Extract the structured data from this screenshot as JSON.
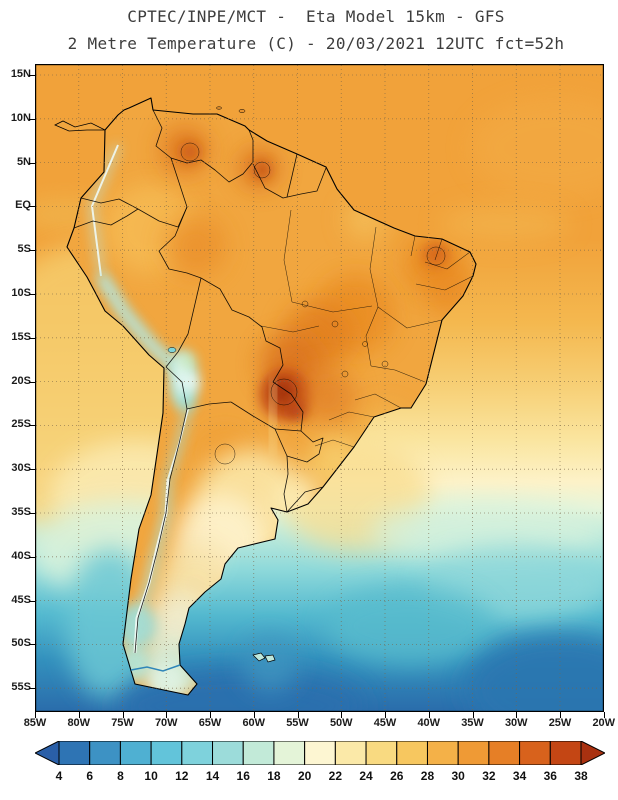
{
  "title": {
    "line1": "CPTEC/INPE/MCT -  Eta Model 15km - GFS",
    "line2": "2 Metre Temperature (C) - 20/03/2021 12UTC fct=52h"
  },
  "axes": {
    "lat_labels": [
      "15N",
      "10N",
      "5N",
      "EQ",
      "5S",
      "10S",
      "15S",
      "20S",
      "25S",
      "30S",
      "35S",
      "40S",
      "45S",
      "50S",
      "55S"
    ],
    "lon_labels": [
      "85W",
      "80W",
      "75W",
      "70W",
      "65W",
      "60W",
      "55W",
      "50W",
      "45W",
      "40W",
      "35W",
      "30W",
      "25W",
      "20W"
    ]
  },
  "colorbar": {
    "labels": [
      "4",
      "6",
      "8",
      "10",
      "12",
      "14",
      "16",
      "18",
      "20",
      "22",
      "24",
      "26",
      "28",
      "30",
      "32",
      "34",
      "36",
      "38"
    ],
    "colors": [
      "#2a5fa8",
      "#2e74b4",
      "#3d92c4",
      "#4fb0d2",
      "#62c4da",
      "#7ed2dc",
      "#9cdcda",
      "#c2ead8",
      "#e4f4d8",
      "#fdf6d2",
      "#fbe9a8",
      "#f9da81",
      "#f7c75f",
      "#f4b148",
      "#ef9a35",
      "#e67f26",
      "#d8621c",
      "#c44614",
      "#a93110"
    ]
  }
}
